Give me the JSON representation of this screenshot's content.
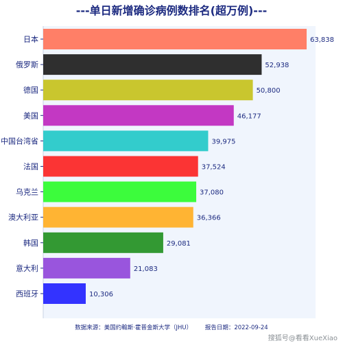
{
  "chart_data": {
    "type": "bar",
    "orientation": "horizontal",
    "title": "---单日新增确诊病例数排名(超万例)---",
    "categories": [
      "日本",
      "俄罗斯",
      "德国",
      "美国",
      "中国台湾省",
      "法国",
      "乌克兰",
      "澳大利亚",
      "韩国",
      "意大利",
      "西班牙"
    ],
    "values": [
      63838,
      52938,
      50800,
      46177,
      39975,
      37524,
      37080,
      36366,
      29081,
      21083,
      10306
    ],
    "value_labels": [
      "63,838",
      "52,938",
      "50,800",
      "46,177",
      "39,975",
      "37,524",
      "37,080",
      "36,366",
      "29,081",
      "21,083",
      "10,306"
    ],
    "colors": [
      "#ff7f67",
      "#2f2f2f",
      "#c9c62e",
      "#c338c3",
      "#33cccc",
      "#fb3434",
      "#3cfc3c",
      "#ffb433",
      "#339933",
      "#9955dd",
      "#3333ff"
    ],
    "xlim": [
      0,
      66000
    ],
    "grid": false,
    "legend": "none",
    "xlabel": "",
    "ylabel": ""
  },
  "footer": {
    "source": "数据来源：美国约翰斯·霍普金斯大学（JHU）",
    "date": "报告日期：2022-09-24"
  },
  "watermark": "搜狐号@看看XueXiao"
}
